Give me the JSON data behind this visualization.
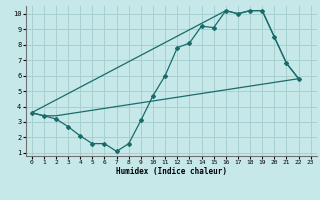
{
  "xlabel": "Humidex (Indice chaleur)",
  "bg_color": "#c6e8e8",
  "grid_color": "#a8d0d0",
  "line_color": "#1a6b6b",
  "xlim": [
    -0.5,
    23.5
  ],
  "ylim": [
    0.8,
    10.5
  ],
  "yticks": [
    1,
    2,
    3,
    4,
    5,
    6,
    7,
    8,
    9,
    10
  ],
  "xticks": [
    0,
    1,
    2,
    3,
    4,
    5,
    6,
    7,
    8,
    9,
    10,
    11,
    12,
    13,
    14,
    15,
    16,
    17,
    18,
    19,
    20,
    21,
    22,
    23
  ],
  "line1_x": [
    0,
    1,
    2,
    3,
    4,
    5,
    6,
    7,
    8,
    9,
    10,
    11,
    12,
    13,
    14,
    15,
    16,
    17,
    18,
    19,
    20,
    21,
    22
  ],
  "line1_y": [
    3.6,
    3.4,
    3.2,
    2.7,
    2.1,
    1.6,
    1.6,
    1.1,
    1.6,
    3.1,
    4.7,
    6.0,
    7.8,
    8.1,
    9.2,
    9.1,
    10.2,
    10.0,
    10.2,
    10.2,
    8.5,
    6.8,
    5.8
  ],
  "line2_x": [
    0,
    1,
    2,
    22
  ],
  "line2_y": [
    3.6,
    3.4,
    3.4,
    5.8
  ],
  "line3_x": [
    0,
    16,
    17,
    18,
    19,
    20,
    21,
    22
  ],
  "line3_y": [
    3.6,
    10.2,
    10.0,
    10.2,
    10.2,
    8.5,
    6.8,
    5.8
  ]
}
